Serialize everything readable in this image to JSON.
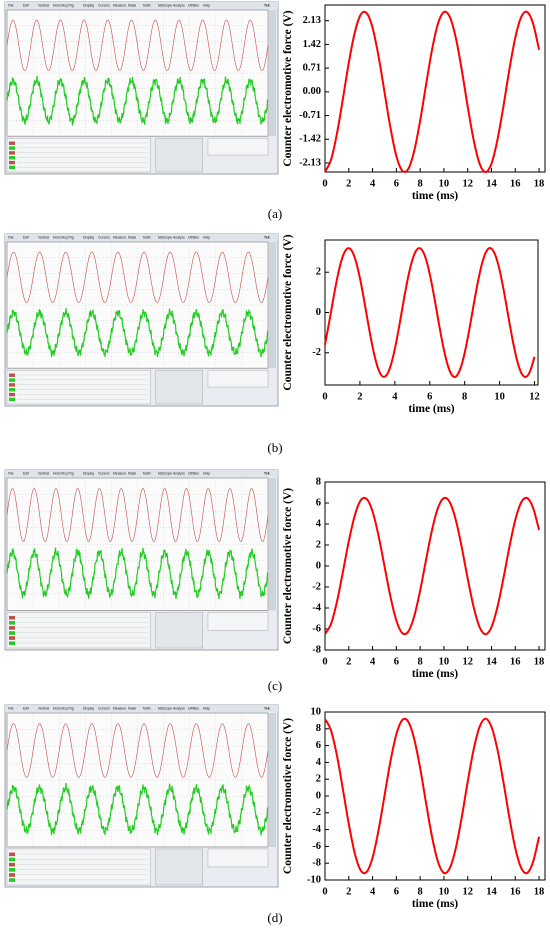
{
  "panel_labels": [
    "(a)",
    "(b)",
    "(c)",
    "(d)"
  ],
  "scope": {
    "brand": "Tek",
    "menu": [
      "File",
      "Edit",
      "Vertical",
      "Horiz/Acq",
      "Trig",
      "Display",
      "Cursors",
      "Measure",
      "Mask",
      "Math",
      "MyScope",
      "Analyze",
      "Utilities",
      "Help"
    ]
  },
  "chart_data": [
    {
      "type": "line",
      "xlabel": "time (ms)",
      "ylabel": "Counter electromotive force (V)",
      "color": "#ff0000",
      "x": [
        0,
        0.5,
        1,
        1.5,
        2,
        2.5,
        3,
        3.5,
        4,
        4.5,
        5,
        5.5,
        6,
        6.5,
        7,
        7.5,
        8,
        8.5,
        9,
        9.5,
        10,
        10.5,
        11,
        11.5,
        12,
        12.5,
        13,
        13.5,
        14,
        14.5,
        15,
        15.5,
        16,
        16.5,
        17,
        17.5,
        18
      ],
      "values": [
        -2.39,
        -2.04,
        -1.26,
        -0.22,
        0.87,
        1.77,
        2.31,
        2.36,
        1.92,
        1.07,
        0,
        -1.07,
        -1.92,
        -2.36,
        -2.31,
        -1.77,
        -0.87,
        0.22,
        1.26,
        2.04,
        2.39,
        2.24,
        1.62,
        0.66,
        -0.44,
        -1.44,
        -2.15,
        -2.4,
        -2.15,
        -1.44,
        -0.44,
        0.66,
        1.62,
        2.24,
        2.39,
        2.04,
        1.26
      ],
      "xlim": [
        0,
        18.5
      ],
      "ylim": [
        -2.4,
        2.6
      ],
      "xticks": [
        0,
        2,
        4,
        6,
        8,
        10,
        12,
        14,
        16,
        18
      ],
      "yticks": [
        -2.13,
        -1.42,
        -0.71,
        {
          "value": 0,
          "label": "0.00"
        },
        0.71,
        1.42,
        2.13
      ]
    },
    {
      "type": "line",
      "xlabel": "time (ms)",
      "ylabel": "Counter electromotive force (V)",
      "color": "#ff0000",
      "x": [
        0,
        0.25,
        0.5,
        0.75,
        1,
        1.25,
        1.5,
        1.75,
        2,
        2.25,
        2.5,
        2.75,
        3,
        3.25,
        3.5,
        3.75,
        4,
        4.25,
        4.5,
        4.75,
        5,
        5.25,
        5.5,
        5.75,
        6,
        6.25,
        6.5,
        6.75,
        7,
        7.25,
        7.5,
        7.75,
        8,
        8.25,
        8.5,
        8.75,
        9,
        9.25,
        9.5,
        9.75,
        10,
        10.25,
        10.5,
        10.75,
        11,
        11.25,
        11.5,
        11.75,
        12
      ],
      "values": [
        -1.6,
        -0.43,
        0.8,
        1.91,
        2.74,
        3.16,
        3.11,
        2.6,
        1.71,
        0.56,
        -0.68,
        -1.81,
        -2.67,
        -3.14,
        -3.14,
        -2.67,
        -1.81,
        -0.68,
        0.56,
        1.71,
        2.6,
        3.11,
        3.16,
        2.74,
        1.91,
        0.8,
        -0.43,
        -1.6,
        -2.53,
        -3.08,
        -3.18,
        -2.8,
        -2.01,
        -0.92,
        0.31,
        1.49,
        2.45,
        3.05,
        3.19,
        2.86,
        2.11,
        1.04,
        -0.19,
        -1.38,
        -2.37,
        -3.01,
        -3.2,
        -2.91,
        -2.2
      ],
      "xlim": [
        0,
        12.2
      ],
      "ylim": [
        -3.6,
        3.6
      ],
      "xticks": [
        0,
        2,
        4,
        6,
        8,
        10,
        12
      ],
      "yticks": [
        -2,
        0,
        2
      ]
    },
    {
      "type": "line",
      "xlabel": "time (ms)",
      "ylabel": "Counter electromotive force (V)",
      "color": "#ff0000",
      "x": [
        0,
        0.5,
        1,
        1.5,
        2,
        2.5,
        3,
        3.5,
        4,
        4.5,
        5,
        5.5,
        6,
        6.5,
        7,
        7.5,
        8,
        8.5,
        9,
        9.5,
        10,
        10.5,
        11,
        11.5,
        12,
        12.5,
        13,
        13.5,
        14,
        14.5,
        15,
        15.5,
        16,
        16.5,
        17,
        17.5,
        18
      ],
      "values": [
        -6.47,
        -5.53,
        -3.43,
        -0.6,
        2.35,
        4.8,
        6.25,
        6.39,
        5.19,
        2.9,
        0,
        -2.9,
        -5.19,
        -6.39,
        -6.25,
        -4.8,
        -2.35,
        0.6,
        3.43,
        5.53,
        6.47,
        6.06,
        4.38,
        1.78,
        -1.2,
        -3.91,
        -5.82,
        -6.5,
        -5.82,
        -3.91,
        -1.2,
        1.78,
        4.38,
        6.06,
        6.47,
        5.53,
        3.43
      ],
      "xlim": [
        0,
        18.5
      ],
      "ylim": [
        -8,
        8
      ],
      "xticks": [
        0,
        2,
        4,
        6,
        8,
        10,
        12,
        14,
        16,
        18
      ],
      "yticks": [
        -8,
        -6,
        -4,
        -2,
        0,
        2,
        4,
        6,
        8
      ]
    },
    {
      "type": "line",
      "xlabel": "time (ms)",
      "ylabel": "Counter electromotive force (V)",
      "color": "#ff0000",
      "x": [
        0,
        0.5,
        1,
        1.5,
        2,
        2.5,
        3,
        3.5,
        4,
        4.5,
        5,
        5.5,
        6,
        6.5,
        7,
        7.5,
        8,
        8.5,
        9,
        9.5,
        10,
        10.5,
        11,
        11.5,
        12,
        12.5,
        13,
        13.5,
        14,
        14.5,
        15,
        15.5,
        16,
        16.5,
        17,
        17.5,
        18
      ],
      "values": [
        9.16,
        7.82,
        4.85,
        0.85,
        -3.32,
        -6.8,
        -8.85,
        -9.04,
        -7.34,
        -4.1,
        0,
        4.1,
        7.34,
        9.04,
        8.85,
        6.8,
        3.32,
        -0.85,
        -4.85,
        -7.82,
        -9.16,
        -8.57,
        -6.2,
        -2.52,
        1.69,
        5.54,
        8.23,
        9.2,
        8.23,
        5.54,
        1.69,
        -2.52,
        -6.2,
        -8.57,
        -9.16,
        -7.82,
        -4.85
      ],
      "xlim": [
        0,
        18.5
      ],
      "ylim": [
        -10,
        10
      ],
      "xticks": [
        0,
        2,
        4,
        6,
        8,
        10,
        12,
        14,
        16,
        18
      ],
      "yticks": [
        -10,
        -8,
        -6,
        -4,
        -2,
        0,
        2,
        4,
        6,
        8,
        10
      ]
    }
  ]
}
